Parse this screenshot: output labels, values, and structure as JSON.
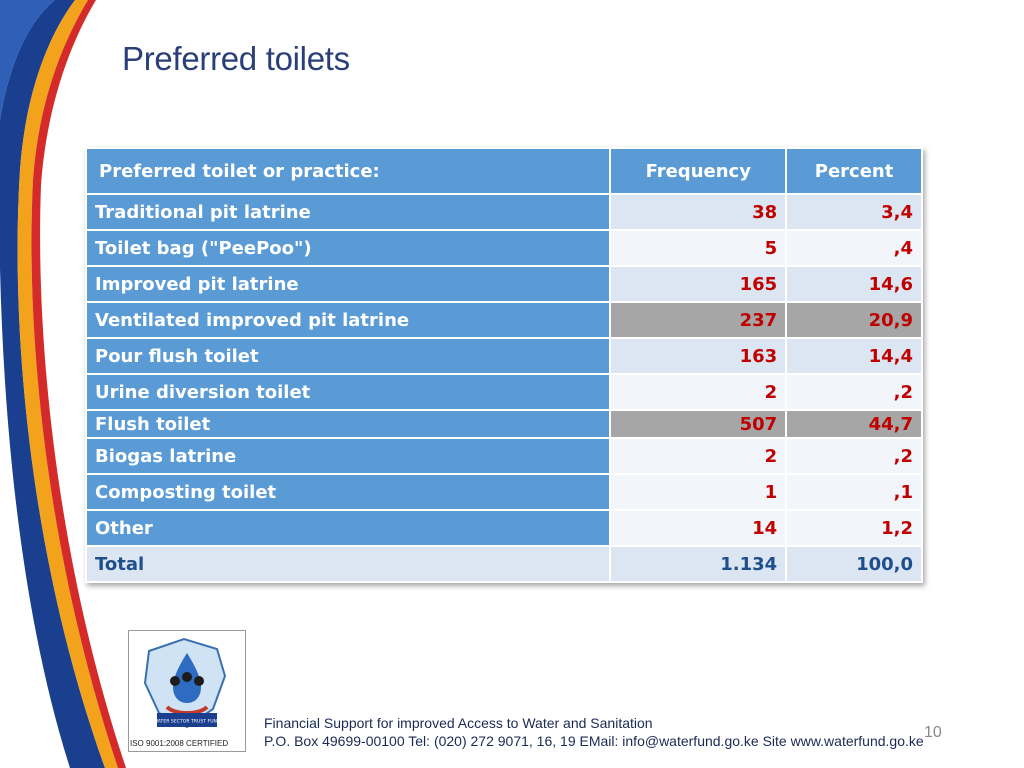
{
  "title": "Preferred toilets",
  "table": {
    "headers": [
      "Preferred toilet or practice:",
      "Frequency",
      "Percent"
    ],
    "rows": [
      {
        "label": "Traditional pit latrine",
        "frequency": "38",
        "percent": "3,4"
      },
      {
        "label": "Toilet bag (\"PeePoo\")",
        "frequency": "5",
        "percent": ",4"
      },
      {
        "label": "Improved pit latrine",
        "frequency": "165",
        "percent": "14,6"
      },
      {
        "label": "Ventilated improved pit latrine",
        "frequency": "237",
        "percent": "20,9"
      },
      {
        "label": "Pour flush toilet",
        "frequency": "163",
        "percent": "14,4"
      },
      {
        "label": "Urine diversion toilet",
        "frequency": "2",
        "percent": ",2"
      },
      {
        "label": "Flush toilet",
        "frequency": "507",
        "percent": "44,7"
      },
      {
        "label": "Biogas latrine",
        "frequency": "2",
        "percent": ",2"
      },
      {
        "label": "Composting toilet",
        "frequency": "1",
        "percent": ",1"
      },
      {
        "label": "Other",
        "frequency": "14",
        "percent": "1,2"
      },
      {
        "label": "Total",
        "frequency": "1.134",
        "percent": "100,0"
      }
    ]
  },
  "logo": {
    "badge_text": "WATER SECTOR TRUST FUND",
    "caption": "ISO 9001:2008 CERTIFIED"
  },
  "footer": {
    "line1": "Financial Support for improved Access to Water and Sanitation",
    "line2": "P.O. Box 49699-00100 Tel: (020) 272 9071, 16, 19 EMail: info@waterfund.go.ke Site www.waterfund.go.ke"
  },
  "page_number": "10",
  "colors": {
    "header_blue": "#5b9bd5",
    "cell_light": "#dce6f2",
    "highlight_gray": "#a6a6a6",
    "value_red": "#c00000",
    "title_navy": "#2a3f7a"
  }
}
